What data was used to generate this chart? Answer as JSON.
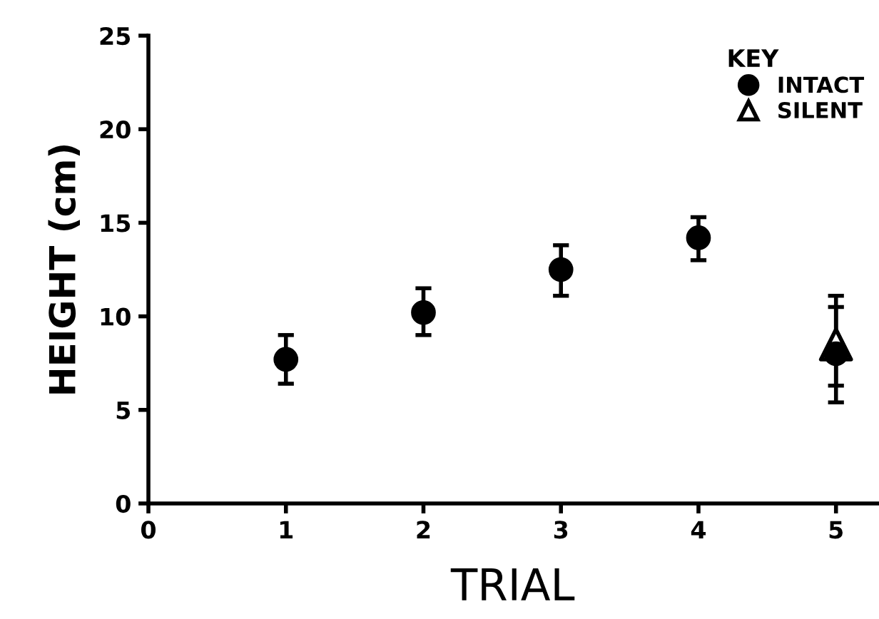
{
  "chart_data": {
    "type": "scatter",
    "xlabel": "TRIAL",
    "ylabel": "HEIGHT (cm)",
    "legend_title": "KEY",
    "legend": "top right",
    "grid": false,
    "x": [
      1,
      2,
      3,
      4,
      5
    ],
    "series": [
      {
        "name": "INTACT",
        "color": "#000000",
        "marker": "circle",
        "values": [
          7.7,
          10.2,
          12.5,
          14.2,
          8.0
        ],
        "errors": [
          [
            6.4,
            9.0
          ],
          [
            9.0,
            11.5
          ],
          [
            11.1,
            13.8
          ],
          [
            13.0,
            15.3
          ],
          [
            6.3,
            10.5
          ]
        ]
      },
      {
        "name": "SILENT",
        "color": "#000000",
        "marker": "triangle",
        "values": [
          null,
          null,
          null,
          null,
          8.5
        ],
        "errors": [
          null,
          null,
          null,
          null,
          [
            5.4,
            11.1
          ]
        ]
      }
    ],
    "xlim": [
      0,
      5.3
    ],
    "xticks": [
      0,
      1,
      2,
      3,
      4,
      5
    ],
    "ylim": [
      0,
      25
    ],
    "yticks": [
      0,
      5,
      10,
      15,
      20,
      25
    ]
  }
}
